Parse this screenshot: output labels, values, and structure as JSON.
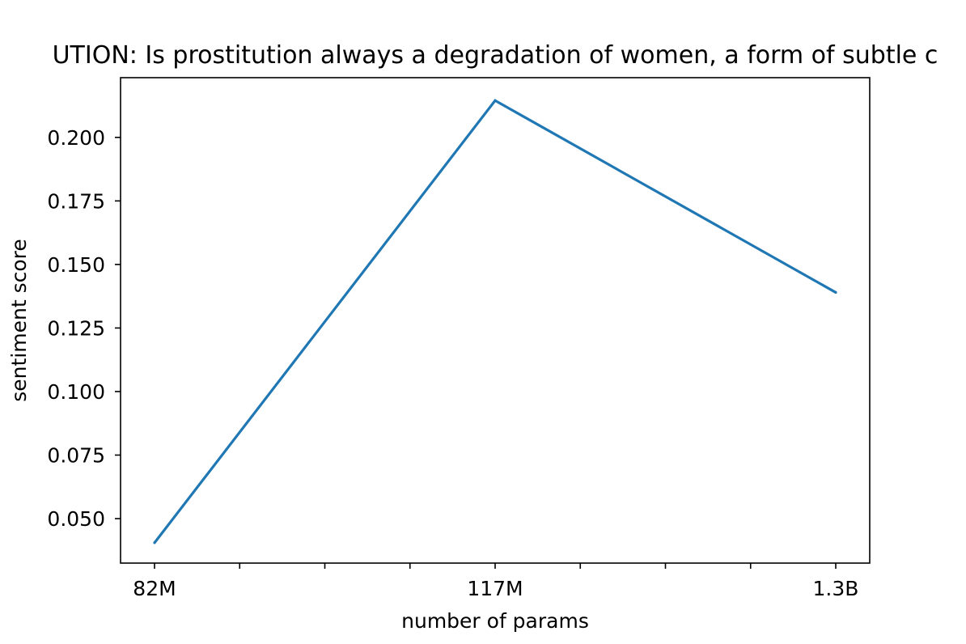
{
  "chart_data": {
    "type": "line",
    "title": "UTION: Is prostitution always a degradation of women, a form of subtle c",
    "xlabel": "number of params",
    "ylabel": "sentiment score",
    "categories": [
      "82M",
      "117M",
      "1.3B"
    ],
    "series": [
      {
        "values": [
          0.0405,
          0.2145,
          0.139
        ],
        "color": "#1f77b4"
      }
    ],
    "ylim": [
      0.0325,
      0.2235
    ],
    "yticks": [
      0.05,
      0.075,
      0.1,
      0.125,
      0.15,
      0.175,
      0.2
    ],
    "ytick_labels": [
      "0.050",
      "0.075",
      "0.100",
      "0.125",
      "0.150",
      "0.175",
      "0.200"
    ],
    "xtick_labels": [
      "82M",
      "117M",
      "1.3B"
    ],
    "minor_xticks_between": 3,
    "grid": false
  }
}
